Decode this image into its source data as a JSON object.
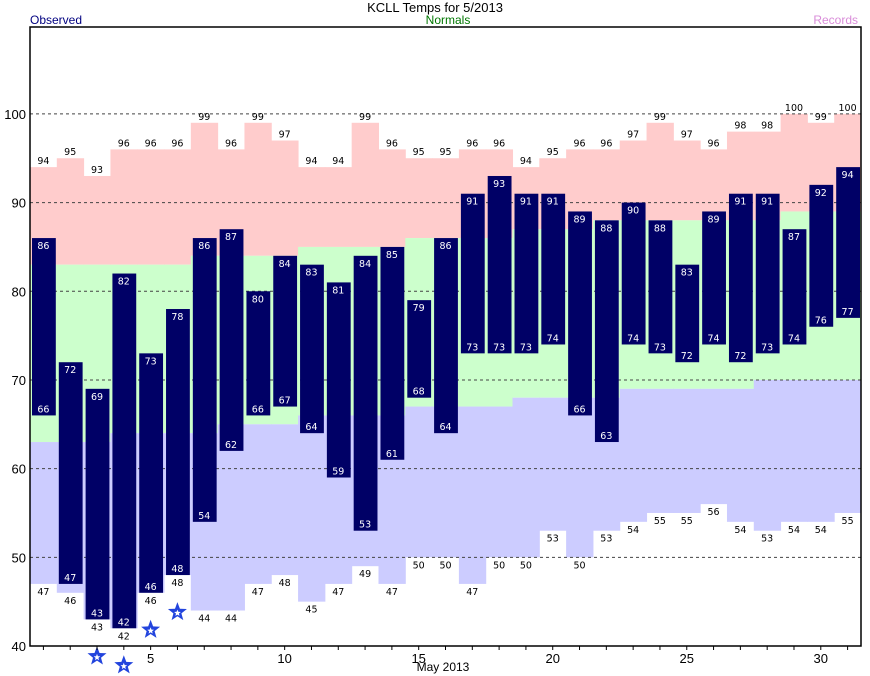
{
  "chart_data": {
    "type": "bar",
    "title": "KCLL Temps for 5/2013",
    "legend": {
      "observed": "Observed",
      "normals": "Normals",
      "records": "Records"
    },
    "xlabel": "May 2013",
    "ylabel": "",
    "ylim": [
      40,
      109.8
    ],
    "yticks": [
      40,
      50,
      60,
      70,
      80,
      90,
      100
    ],
    "xticks": [
      5,
      10,
      15,
      20,
      25,
      30
    ],
    "grid": true,
    "days": [
      1,
      2,
      3,
      4,
      5,
      6,
      7,
      8,
      9,
      10,
      11,
      12,
      13,
      14,
      15,
      16,
      17,
      18,
      19,
      20,
      21,
      22,
      23,
      24,
      25,
      26,
      27,
      28,
      29,
      30,
      31
    ],
    "series": [
      {
        "name": "Observed High",
        "values": [
          86,
          72,
          69,
          82,
          73,
          78,
          86,
          87,
          80,
          84,
          83,
          81,
          84,
          85,
          79,
          86,
          91,
          93,
          91,
          91,
          89,
          88,
          90,
          88,
          83,
          89,
          91,
          91,
          87,
          92,
          94
        ]
      },
      {
        "name": "Observed Low",
        "values": [
          66,
          47,
          43,
          42,
          46,
          48,
          54,
          62,
          66,
          67,
          64,
          59,
          53,
          61,
          68,
          64,
          73,
          73,
          73,
          74,
          66,
          63,
          74,
          73,
          72,
          74,
          72,
          73,
          74,
          76,
          77
        ]
      },
      {
        "name": "Normal High",
        "values": [
          83,
          83,
          83,
          83,
          83,
          83,
          84,
          84,
          84,
          84,
          85,
          85,
          85,
          85,
          86,
          86,
          86,
          86,
          87,
          87,
          87,
          88,
          88,
          88,
          88,
          88,
          88,
          88,
          89,
          89,
          89
        ]
      },
      {
        "name": "Normal Low",
        "values": [
          63,
          63,
          63,
          64,
          64,
          64,
          64,
          65,
          65,
          65,
          66,
          66,
          66,
          66,
          67,
          67,
          67,
          67,
          68,
          68,
          68,
          68,
          69,
          69,
          69,
          69,
          69,
          70,
          70,
          70,
          70
        ]
      },
      {
        "name": "Record High",
        "values": [
          94,
          95,
          93,
          96,
          96,
          96,
          99,
          96,
          99,
          97,
          94,
          94,
          99,
          96,
          95,
          95,
          96,
          96,
          94,
          95,
          96,
          96,
          97,
          99,
          97,
          96,
          98,
          98,
          100,
          99,
          100
        ]
      },
      {
        "name": "Record Low",
        "values": [
          47,
          46,
          43,
          42,
          46,
          48,
          44,
          44,
          47,
          48,
          45,
          47,
          49,
          47,
          50,
          50,
          47,
          50,
          50,
          53,
          50,
          53,
          54,
          55,
          55,
          56,
          54,
          53,
          54,
          54,
          55
        ]
      }
    ],
    "record_low_set_days": [
      3,
      4,
      5,
      6
    ],
    "colors": {
      "observed": "#000066",
      "normals_band": "#ccffcc",
      "record_high_band": "#ffcccc",
      "record_low_band": "#ccccff",
      "star": "#2244dd",
      "observed_label": "#000080",
      "normals_label": "#007700",
      "records_label": "#d98cd9"
    }
  }
}
